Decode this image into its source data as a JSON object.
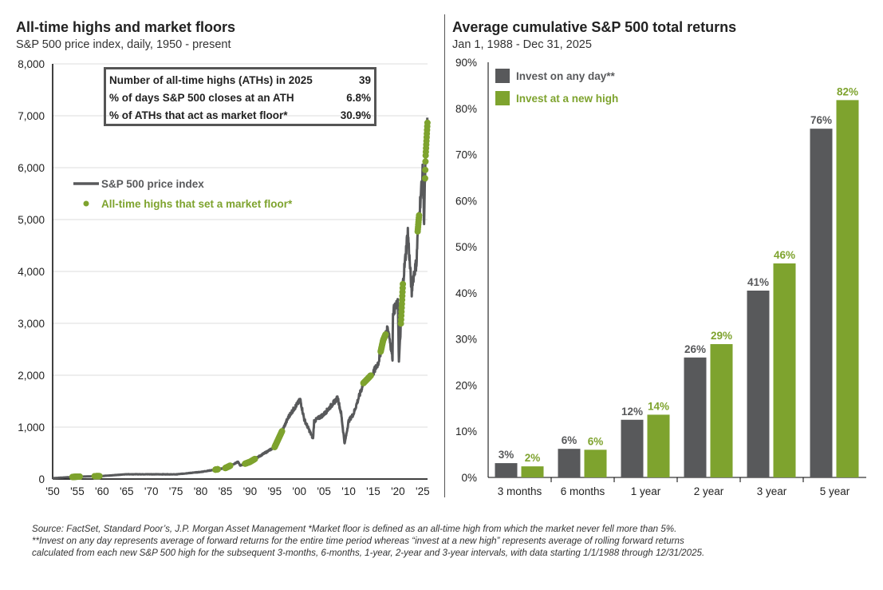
{
  "colors": {
    "grey": "#58595b",
    "green": "#7ea32e"
  },
  "left": {
    "title": "All-time highs and market floors",
    "subtitle": "S&P 500 price index, daily, 1950 - present",
    "stats": [
      {
        "label": "Number of all-time highs (ATHs) in 2025",
        "value": "39"
      },
      {
        "label": "% of days S&P 500 closes at an ATH",
        "value": "6.8%"
      },
      {
        "label": "% of ATHs that act as market floor*",
        "value": "30.9%"
      }
    ]
  },
  "right": {
    "title": "Average cumulative S&P 500 total returns",
    "subtitle": "Jan 1, 1988 - Dec 31, 2025"
  },
  "footnote": [
    "Source: FactSet, Standard Poor’s, J.P. Morgan Asset Management *Market floor is defined as an all-time high from which the market never fell more than 5%.",
    "**Invest on any day represents average of forward returns for the entire time period whereas “invest at a new high” represents average of rolling forward returns",
    "calculated from each new S&P 500 high for the subsequent 3-months, 6-months, 1-year, 2-year and 3-year intervals, with data starting 1/1/1988 through 12/31/2025."
  ],
  "chart_data": [
    {
      "type": "line",
      "title": "All-time highs and market floors",
      "ylim": [
        0,
        8000
      ],
      "xlim": [
        1950,
        2026
      ],
      "yticks": [
        "0",
        "1,000",
        "2,000",
        "3,000",
        "4,000",
        "5,000",
        "6,000",
        "7,000",
        "8,000"
      ],
      "xticks": [
        "'50",
        "'55",
        "'60",
        "'65",
        "'70",
        "'75",
        "'80",
        "'85",
        "'90",
        "'95",
        "'00",
        "'05",
        "'10",
        "'15",
        "'20",
        "'25"
      ],
      "legend": [
        "S&P 500 price index",
        "All-time highs that set a market floor*"
      ],
      "grid": true,
      "series": [
        {
          "name": "S&P 500 price index",
          "x": [
            1950,
            1955,
            1960,
            1965,
            1970,
            1975,
            1980,
            1985,
            1987.6,
            1988,
            1990,
            1995,
            1998,
            2000.2,
            2001,
            2002.8,
            2003,
            2005,
            2007.8,
            2008.5,
            2009.2,
            2010,
            2011,
            2013,
            2015,
            2016,
            2017,
            2018,
            2018.9,
            2019,
            2020,
            2020.2,
            2021,
            2022,
            2022.8,
            2023,
            2023.8,
            2024,
            2025,
            2025.3,
            2025.6,
            2026
          ],
          "y": [
            17,
            45,
            58,
            92,
            92,
            90,
            136,
            211,
            330,
            260,
            330,
            615,
            1229,
            1527,
            1150,
            776,
            1112,
            1248,
            1565,
            1250,
            676,
            1115,
            1258,
            1848,
            2044,
            2238,
            2674,
            2900,
            2350,
            3231,
            3380,
            2237,
            3756,
            4766,
            3577,
            3840,
            4200,
            4770,
            5882,
            4982,
            6200,
            6900
          ]
        },
        {
          "name": "All-time highs that set a market floor*",
          "ranges": [
            [
              1954,
              1955.5
            ],
            [
              1958.5,
              1959.5
            ],
            [
              1983,
              1983.5
            ],
            [
              1985,
              1986
            ],
            [
              1989,
              1991
            ],
            [
              1995,
              1996.5
            ],
            [
              2013,
              2014.5
            ],
            [
              2016.5,
              2017.5
            ],
            [
              2020.6,
              2021
            ],
            [
              2024,
              2024.3
            ],
            [
              2025.5,
              2026
            ]
          ]
        }
      ]
    },
    {
      "type": "bar",
      "title": "Average cumulative S&P 500 total returns",
      "ylim": [
        0,
        90
      ],
      "yticks": [
        "0%",
        "10%",
        "20%",
        "30%",
        "40%",
        "50%",
        "60%",
        "70%",
        "80%",
        "90%"
      ],
      "categories": [
        "3 months",
        "6 months",
        "1 year",
        "2 year",
        "3 year",
        "5 year"
      ],
      "series": [
        {
          "name": "Invest on any day**",
          "values": [
            3.1,
            6.2,
            12.5,
            26,
            40.5,
            75.6
          ],
          "labels": [
            "3%",
            "6%",
            "12%",
            "26%",
            "41%",
            "76%"
          ]
        },
        {
          "name": "Invest at a new high",
          "values": [
            2.4,
            6.0,
            13.6,
            28.9,
            46.4,
            81.8
          ],
          "labels": [
            "2%",
            "6%",
            "14%",
            "29%",
            "46%",
            "82%"
          ]
        }
      ],
      "legend": "top-left",
      "grid": false
    }
  ]
}
